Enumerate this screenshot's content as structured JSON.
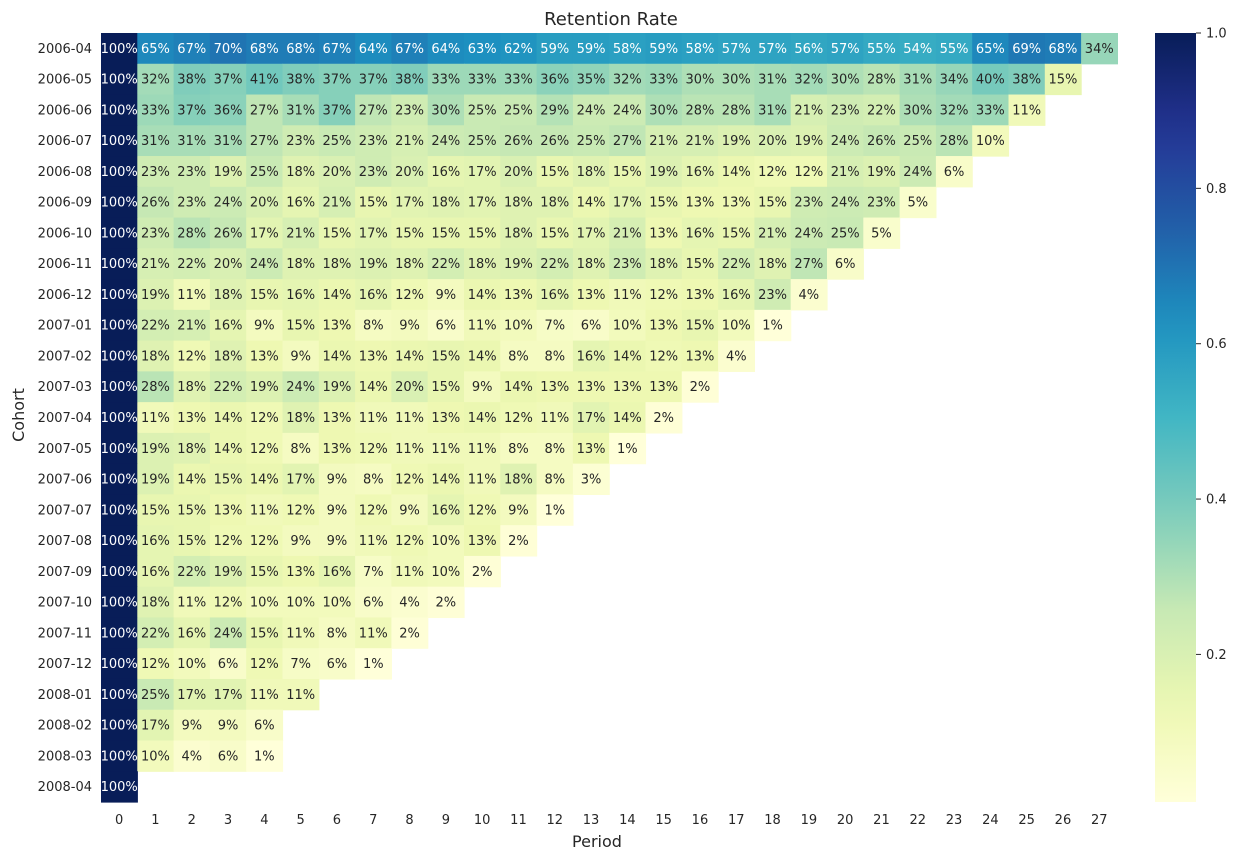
{
  "chart_data": {
    "type": "heatmap",
    "title": "Retention Rate",
    "xlabel": "Period",
    "ylabel": "Cohort",
    "colormap": "YlGnBu",
    "value_range": [
      0,
      1
    ],
    "colorbar_ticks": [
      0.2,
      0.4,
      0.6,
      0.8,
      1.0
    ],
    "colorbar_tick_labels": [
      "0.2",
      "0.4",
      "0.6",
      "0.8",
      "1.0"
    ],
    "x_categories": [
      "0",
      "1",
      "2",
      "3",
      "4",
      "5",
      "6",
      "7",
      "8",
      "9",
      "10",
      "11",
      "12",
      "13",
      "14",
      "15",
      "16",
      "17",
      "18",
      "19",
      "20",
      "21",
      "22",
      "23",
      "24",
      "25",
      "26",
      "27"
    ],
    "y_categories": [
      "2006-04",
      "2006-05",
      "2006-06",
      "2006-07",
      "2006-08",
      "2006-09",
      "2006-10",
      "2006-11",
      "2006-12",
      "2007-01",
      "2007-02",
      "2007-03",
      "2007-04",
      "2007-05",
      "2007-06",
      "2007-07",
      "2007-08",
      "2007-09",
      "2007-10",
      "2007-11",
      "2007-12",
      "2008-01",
      "2008-02",
      "2008-03",
      "2008-04"
    ],
    "values": [
      [
        100,
        65,
        67,
        70,
        68,
        68,
        67,
        64,
        67,
        64,
        63,
        62,
        59,
        59,
        58,
        59,
        58,
        57,
        57,
        56,
        57,
        55,
        54,
        55,
        65,
        69,
        68,
        34
      ],
      [
        100,
        32,
        38,
        37,
        41,
        38,
        37,
        37,
        38,
        33,
        33,
        33,
        36,
        35,
        32,
        33,
        30,
        30,
        31,
        32,
        30,
        28,
        31,
        34,
        40,
        38,
        15
      ],
      [
        100,
        33,
        37,
        36,
        27,
        31,
        37,
        27,
        23,
        30,
        25,
        25,
        29,
        24,
        24,
        30,
        28,
        28,
        31,
        21,
        23,
        22,
        30,
        32,
        33,
        11
      ],
      [
        100,
        31,
        31,
        31,
        27,
        23,
        25,
        23,
        21,
        24,
        25,
        26,
        26,
        25,
        27,
        21,
        21,
        19,
        20,
        19,
        24,
        26,
        25,
        28,
        10
      ],
      [
        100,
        23,
        23,
        19,
        25,
        18,
        20,
        23,
        20,
        16,
        17,
        20,
        15,
        18,
        15,
        19,
        16,
        14,
        12,
        12,
        21,
        19,
        24,
        6
      ],
      [
        100,
        26,
        23,
        24,
        20,
        16,
        21,
        15,
        17,
        18,
        17,
        18,
        18,
        14,
        17,
        15,
        13,
        13,
        15,
        23,
        24,
        23,
        5
      ],
      [
        100,
        23,
        28,
        26,
        17,
        21,
        15,
        17,
        15,
        15,
        15,
        18,
        15,
        17,
        21,
        13,
        16,
        15,
        21,
        24,
        25,
        5
      ],
      [
        100,
        21,
        22,
        20,
        24,
        18,
        18,
        19,
        18,
        22,
        18,
        19,
        22,
        18,
        23,
        18,
        15,
        22,
        18,
        27,
        6
      ],
      [
        100,
        19,
        11,
        18,
        15,
        16,
        14,
        16,
        12,
        9,
        14,
        13,
        16,
        13,
        11,
        12,
        13,
        16,
        23,
        4
      ],
      [
        100,
        22,
        21,
        16,
        9,
        15,
        13,
        8,
        9,
        6,
        11,
        10,
        7,
        6,
        10,
        13,
        15,
        10,
        1
      ],
      [
        100,
        18,
        12,
        18,
        13,
        9,
        14,
        13,
        14,
        15,
        14,
        8,
        8,
        16,
        14,
        12,
        13,
        4
      ],
      [
        100,
        28,
        18,
        22,
        19,
        24,
        19,
        14,
        20,
        15,
        9,
        14,
        13,
        13,
        13,
        13,
        2
      ],
      [
        100,
        11,
        13,
        14,
        12,
        18,
        13,
        11,
        11,
        13,
        14,
        12,
        11,
        17,
        14,
        2
      ],
      [
        100,
        19,
        18,
        14,
        12,
        8,
        13,
        12,
        11,
        11,
        11,
        8,
        8,
        13,
        1
      ],
      [
        100,
        19,
        14,
        15,
        14,
        17,
        9,
        8,
        12,
        14,
        11,
        18,
        8,
        3
      ],
      [
        100,
        15,
        15,
        13,
        11,
        12,
        9,
        12,
        9,
        16,
        12,
        9,
        1
      ],
      [
        100,
        16,
        15,
        12,
        12,
        9,
        9,
        11,
        12,
        10,
        13,
        2
      ],
      [
        100,
        16,
        22,
        19,
        15,
        13,
        16,
        7,
        11,
        10,
        2
      ],
      [
        100,
        18,
        11,
        12,
        10,
        10,
        10,
        6,
        4,
        2
      ],
      [
        100,
        22,
        16,
        24,
        15,
        11,
        8,
        11,
        2
      ],
      [
        100,
        12,
        10,
        6,
        12,
        7,
        6,
        1
      ],
      [
        100,
        25,
        17,
        17,
        11,
        11
      ],
      [
        100,
        17,
        9,
        9,
        6
      ],
      [
        100,
        10,
        4,
        6,
        1
      ],
      [
        100
      ]
    ],
    "value_suffix": "%"
  }
}
